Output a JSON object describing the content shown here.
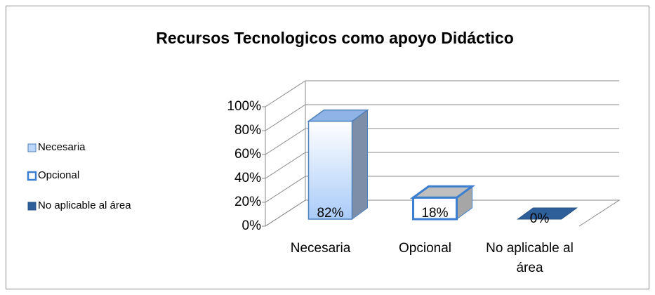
{
  "chart_data": {
    "type": "bar3d",
    "title": "Recursos Tecnologicos como apoyo Didáctico",
    "categories": [
      "Necesaria",
      "Opcional",
      "No aplicable al área"
    ],
    "values": [
      82,
      18,
      0
    ],
    "value_labels": [
      "82%",
      "18%",
      "0%"
    ],
    "colors": [
      "#bcd7fb",
      "#ffffff",
      "#2f5f98"
    ],
    "ylim": [
      0,
      100
    ],
    "yticks": [
      {
        "value": 0,
        "label": "0%"
      },
      {
        "value": 20,
        "label": "20%"
      },
      {
        "value": 40,
        "label": "40%"
      },
      {
        "value": 60,
        "label": "60%"
      },
      {
        "value": 80,
        "label": "80%"
      },
      {
        "value": 100,
        "label": "100%"
      }
    ],
    "grid": true,
    "legend": "left"
  }
}
